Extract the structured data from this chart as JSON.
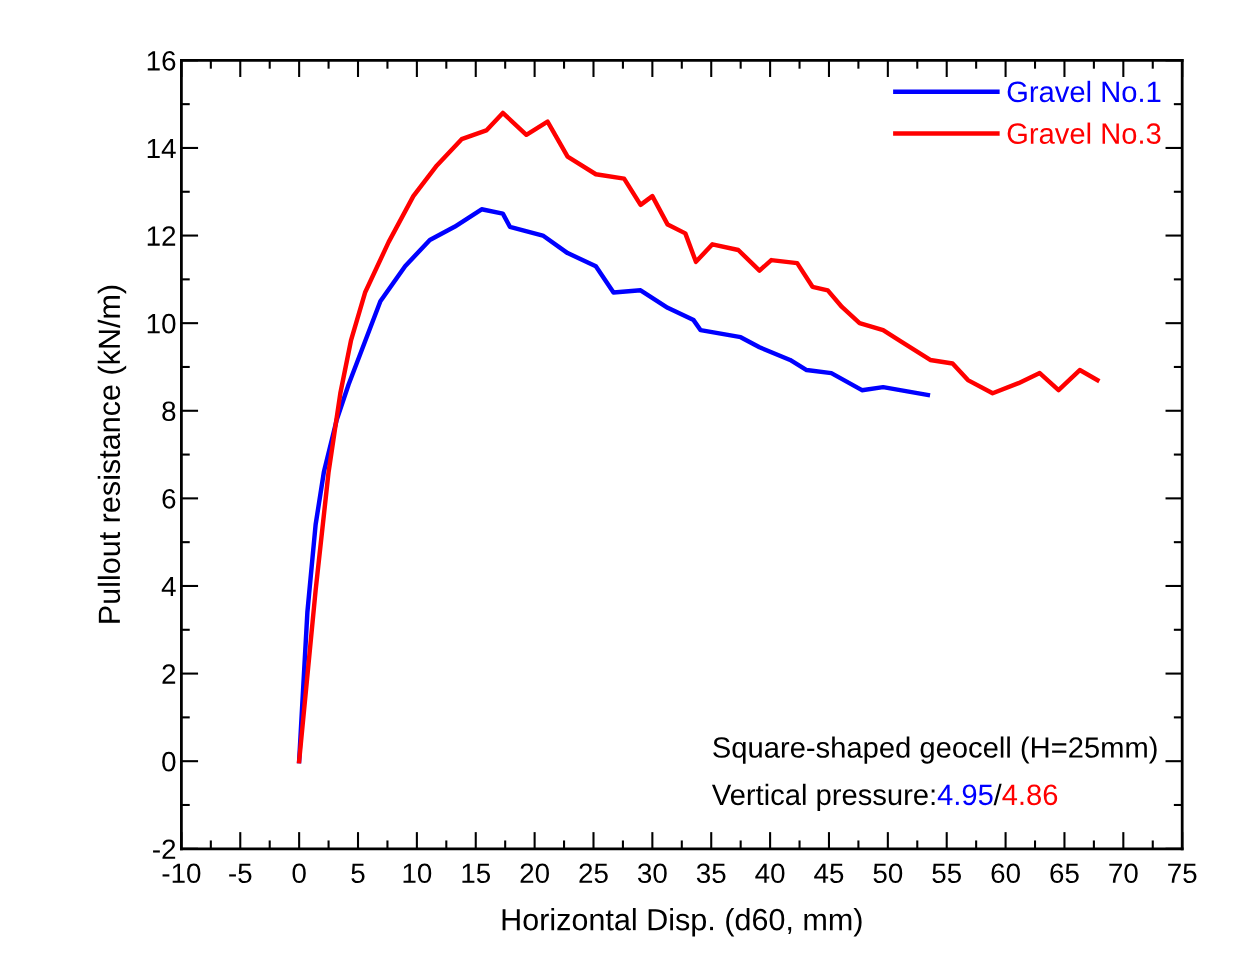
{
  "chart_data": {
    "type": "line",
    "xlabel": "Horizontal Disp. (d60, mm)",
    "ylabel": "Pullout resistance (kN/m)",
    "xlim": [
      -10,
      75
    ],
    "ylim": [
      -2,
      16
    ],
    "xticks": [
      -10,
      -5,
      0,
      5,
      10,
      15,
      20,
      25,
      30,
      35,
      40,
      45,
      50,
      55,
      60,
      65,
      70,
      75
    ],
    "yticks": [
      -2,
      0,
      2,
      4,
      6,
      8,
      10,
      12,
      14,
      16
    ],
    "grid": false,
    "legend": "top right",
    "marker": "none",
    "line_style": "solid",
    "annotations": [
      "Square-shaped geocell (H=25mm)",
      "Vertical pressure:",
      "4.95",
      "/",
      "4.86"
    ],
    "series": [
      {
        "name": "Gravel No.1",
        "color": "#0000ff",
        "x": [
          0,
          0.7,
          1.4,
          2.1,
          3.2,
          4.2,
          5.2,
          6.9,
          9.0,
          11.1,
          13.2,
          15.5,
          17.3,
          17.9,
          20.7,
          22.8,
          25.2,
          26.7,
          29.0,
          31.3,
          33.5,
          34.1,
          37.5,
          39.1,
          41.7,
          43.1,
          45.2,
          47.8,
          49.6,
          53.4
        ],
        "values": [
          0,
          3.4,
          5.4,
          6.6,
          7.8,
          8.6,
          9.3,
          10.5,
          11.3,
          11.9,
          12.2,
          12.6,
          12.5,
          12.2,
          12.0,
          11.6,
          11.3,
          10.7,
          10.75,
          10.35,
          10.07,
          9.84,
          9.68,
          9.45,
          9.16,
          8.93,
          8.86,
          8.47,
          8.54,
          8.36
        ]
      },
      {
        "name": "Gravel No.3",
        "color": "#ff0000",
        "x": [
          0,
          1.4,
          2.5,
          3.5,
          4.4,
          5.6,
          7.6,
          9.7,
          11.7,
          13.8,
          15.9,
          17.3,
          19.3,
          21.1,
          22.8,
          25.2,
          27.6,
          29.0,
          30.0,
          31.3,
          32.8,
          33.7,
          35.1,
          37.3,
          39.1,
          40.1,
          42.3,
          43.6,
          44.9,
          46.1,
          47.6,
          49.6,
          51.0,
          53.6,
          55.5,
          56.8,
          58.9,
          61.1,
          62.9,
          64.5,
          66.3,
          67.8
        ],
        "values": [
          0,
          3.9,
          6.6,
          8.4,
          9.6,
          10.7,
          11.85,
          12.9,
          13.6,
          14.2,
          14.4,
          14.8,
          14.3,
          14.6,
          13.8,
          13.4,
          13.3,
          12.7,
          12.9,
          12.25,
          12.05,
          11.4,
          11.8,
          11.67,
          11.2,
          11.44,
          11.37,
          10.83,
          10.75,
          10.37,
          10.0,
          9.84,
          9.6,
          9.16,
          9.08,
          8.7,
          8.4,
          8.63,
          8.86,
          8.47,
          8.93,
          8.7
        ]
      }
    ]
  }
}
